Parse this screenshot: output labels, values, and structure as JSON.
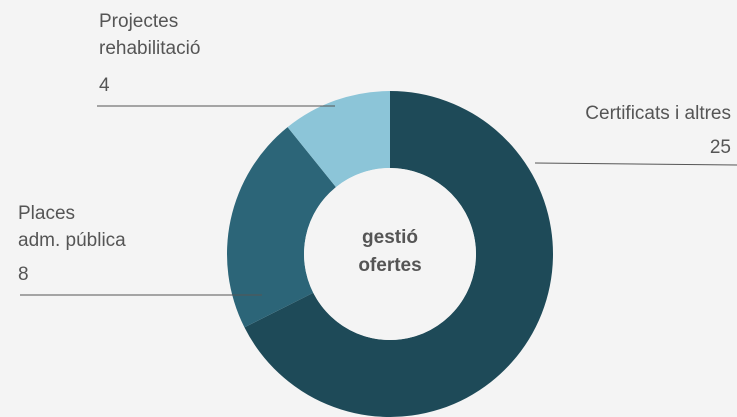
{
  "chart_data": {
    "type": "donut",
    "center_label": "gestió\nofertes",
    "categories": [
      "Certificats i altres",
      "Places\nadm. pública",
      "Projectes\nrehabilitació"
    ],
    "values": [
      25,
      8,
      4
    ],
    "colors": [
      "#1e4a58",
      "#2c6578",
      "#8cc5d8"
    ]
  }
}
